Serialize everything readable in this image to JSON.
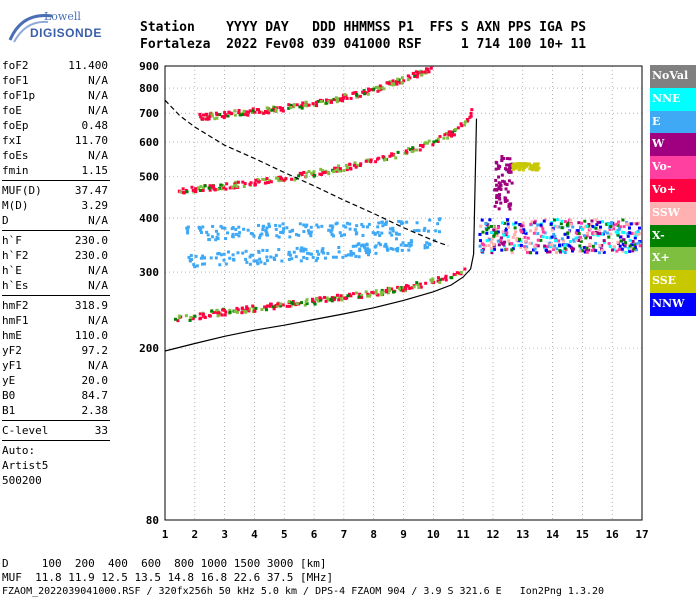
{
  "logo": {
    "top": "Lowell",
    "main": "DIGISONDE"
  },
  "header": {
    "line1": "Station    YYYY DAY   DDD HHMMSS P1  FFS S AXN PPS IGA PS",
    "line2": "Fortaleza  2022 Fev08 039 041000 RSF     1 714 100 10+ 11"
  },
  "params_groups": [
    [
      {
        "name": "foF2",
        "value": "11.400"
      },
      {
        "name": "foF1",
        "value": "N/A"
      },
      {
        "name": "foF1p",
        "value": "N/A"
      },
      {
        "name": "foE",
        "value": "N/A"
      },
      {
        "name": "foEp",
        "value": "0.48"
      },
      {
        "name": "fxI",
        "value": "11.70"
      },
      {
        "name": "foEs",
        "value": "N/A"
      },
      {
        "name": "fmin",
        "value": "1.15"
      }
    ],
    [
      {
        "name": "MUF(D)",
        "value": "37.47"
      },
      {
        "name": "M(D)",
        "value": "3.29"
      },
      {
        "name": "D",
        "value": "N/A"
      }
    ],
    [
      {
        "name": "h`F",
        "value": "230.0"
      },
      {
        "name": "h`F2",
        "value": "230.0"
      },
      {
        "name": "h`E",
        "value": "N/A"
      },
      {
        "name": "h`Es",
        "value": "N/A"
      }
    ],
    [
      {
        "name": "hmF2",
        "value": "318.9"
      },
      {
        "name": "hmF1",
        "value": "N/A"
      },
      {
        "name": "hmE",
        "value": "110.0"
      },
      {
        "name": "yF2",
        "value": "97.2"
      },
      {
        "name": "yF1",
        "value": "N/A"
      },
      {
        "name": "yE",
        "value": "20.0"
      },
      {
        "name": "B0",
        "value": "84.7"
      },
      {
        "name": "B1",
        "value": "2.38"
      }
    ],
    [
      {
        "name": "C-level",
        "value": "33"
      }
    ]
  ],
  "auto": [
    "Auto:",
    "Artist5",
    "500200"
  ],
  "legend": [
    {
      "label": "NoVal",
      "color": "#808080"
    },
    {
      "label": "NNE",
      "color": "#00ffff"
    },
    {
      "label": "E",
      "color": "#3fa9f5"
    },
    {
      "label": "W",
      "color": "#a00080"
    },
    {
      "label": "Vo-",
      "color": "#ff40a0"
    },
    {
      "label": "Vo+",
      "color": "#ff0040"
    },
    {
      "label": "SSW",
      "color": "#ffb0b0"
    },
    {
      "label": "X-",
      "color": "#008000"
    },
    {
      "label": "X+",
      "color": "#7fbf40"
    },
    {
      "label": "SSE",
      "color": "#c8c800"
    },
    {
      "label": "NNW",
      "color": "#0000ff"
    }
  ],
  "bottom": {
    "line1": "D     100  200  400  600  800 1000 1500 3000 [km]",
    "line2": "MUF  11.8 11.9 12.5 13.5 14.8 16.8 22.6 37.5 [MHz]",
    "line3": "FZAOM_2022039041000.RSF / 320fx256h 50 kHz 5.0 km / DPS-4 FZAOM 904 / 3.9 S 321.6 E   Ion2Png 1.3.20"
  },
  "chart_data": {
    "type": "scatter",
    "title": "",
    "xlabel": "",
    "ylabel": "",
    "xlim": [
      1,
      17
    ],
    "ylim": [
      80,
      900
    ],
    "x_ticks": [
      1,
      2,
      3,
      4,
      5,
      6,
      7,
      8,
      9,
      10,
      11,
      12,
      13,
      14,
      15,
      16,
      17
    ],
    "y_ticks": [
      80,
      200,
      300,
      400,
      500,
      600,
      700,
      800,
      900
    ],
    "y_scale": "log",
    "grid": true,
    "traces": [
      {
        "kind": "echo",
        "legend": "Vo+",
        "x": [
          1.3,
          1.8,
          2.5,
          3.3,
          4.2,
          5.2,
          6.2,
          7.2,
          8.2,
          9.0,
          9.8,
          10.3,
          10.8,
          11.1
        ],
        "y": [
          235,
          237,
          242,
          246,
          250,
          255,
          260,
          266,
          272,
          278,
          286,
          292,
          300,
          310
        ]
      },
      {
        "kind": "echo",
        "legend": "Vo+",
        "x": [
          1.4,
          2.0,
          3.0,
          4.0,
          5.0,
          6.0,
          7.0,
          8.0,
          9.0,
          10.0,
          10.7,
          11.1,
          11.3
        ],
        "y": [
          465,
          470,
          478,
          487,
          498,
          512,
          528,
          548,
          572,
          605,
          640,
          680,
          720
        ]
      },
      {
        "kind": "echo",
        "legend": "Vo+",
        "x": [
          2.1,
          3.0,
          4.0,
          5.0,
          6.0,
          7.0,
          8.0,
          9.0,
          9.6,
          10.0
        ],
        "y": [
          690,
          700,
          712,
          726,
          744,
          768,
          800,
          845,
          880,
          900
        ]
      },
      {
        "kind": "echo",
        "legend": "E",
        "x": [
          1.4,
          2.0,
          3.0,
          4.0,
          5.0,
          6.0,
          7.0,
          8.0,
          9.0,
          10.0
        ],
        "y": [
          315,
          320,
          325,
          327,
          330,
          333,
          337,
          343,
          350,
          356
        ]
      },
      {
        "kind": "echo",
        "legend": "E",
        "x": [
          1.5,
          2.5,
          3.5,
          4.5,
          5.5,
          6.5,
          7.5,
          8.5,
          9.5,
          10.3
        ],
        "y": [
          370,
          372,
          375,
          377,
          378,
          379,
          380,
          382,
          385,
          388
        ]
      },
      {
        "kind": "profile",
        "x": [
          1.0,
          2.0,
          3.0,
          4.0,
          5.0,
          6.0,
          7.0,
          8.0,
          9.0,
          10.0,
          10.6,
          11.0,
          11.25,
          11.35,
          11.4,
          11.45
        ],
        "y": [
          197,
          205,
          213,
          220,
          226,
          233,
          240,
          248,
          258,
          270,
          280,
          292,
          305,
          330,
          480,
          680
        ]
      },
      {
        "kind": "profile_dashed",
        "x": [
          1.0,
          1.5,
          2.0,
          3.0,
          4.0,
          5.0,
          6.0,
          7.0,
          8.0,
          9.0,
          10.0,
          10.5
        ],
        "y": [
          750,
          690,
          650,
          590,
          550,
          510,
          475,
          440,
          410,
          380,
          355,
          345
        ]
      }
    ],
    "clusters": [
      {
        "legend": "mixed",
        "xrange": [
          11.5,
          16.9
        ],
        "yrange": [
          335,
          400
        ]
      },
      {
        "legend": "W",
        "xrange": [
          12.0,
          12.6
        ],
        "yrange": [
          420,
          560
        ]
      },
      {
        "legend": "SSE",
        "xrange": [
          12.6,
          13.5
        ],
        "yrange": [
          520,
          540
        ]
      }
    ]
  }
}
